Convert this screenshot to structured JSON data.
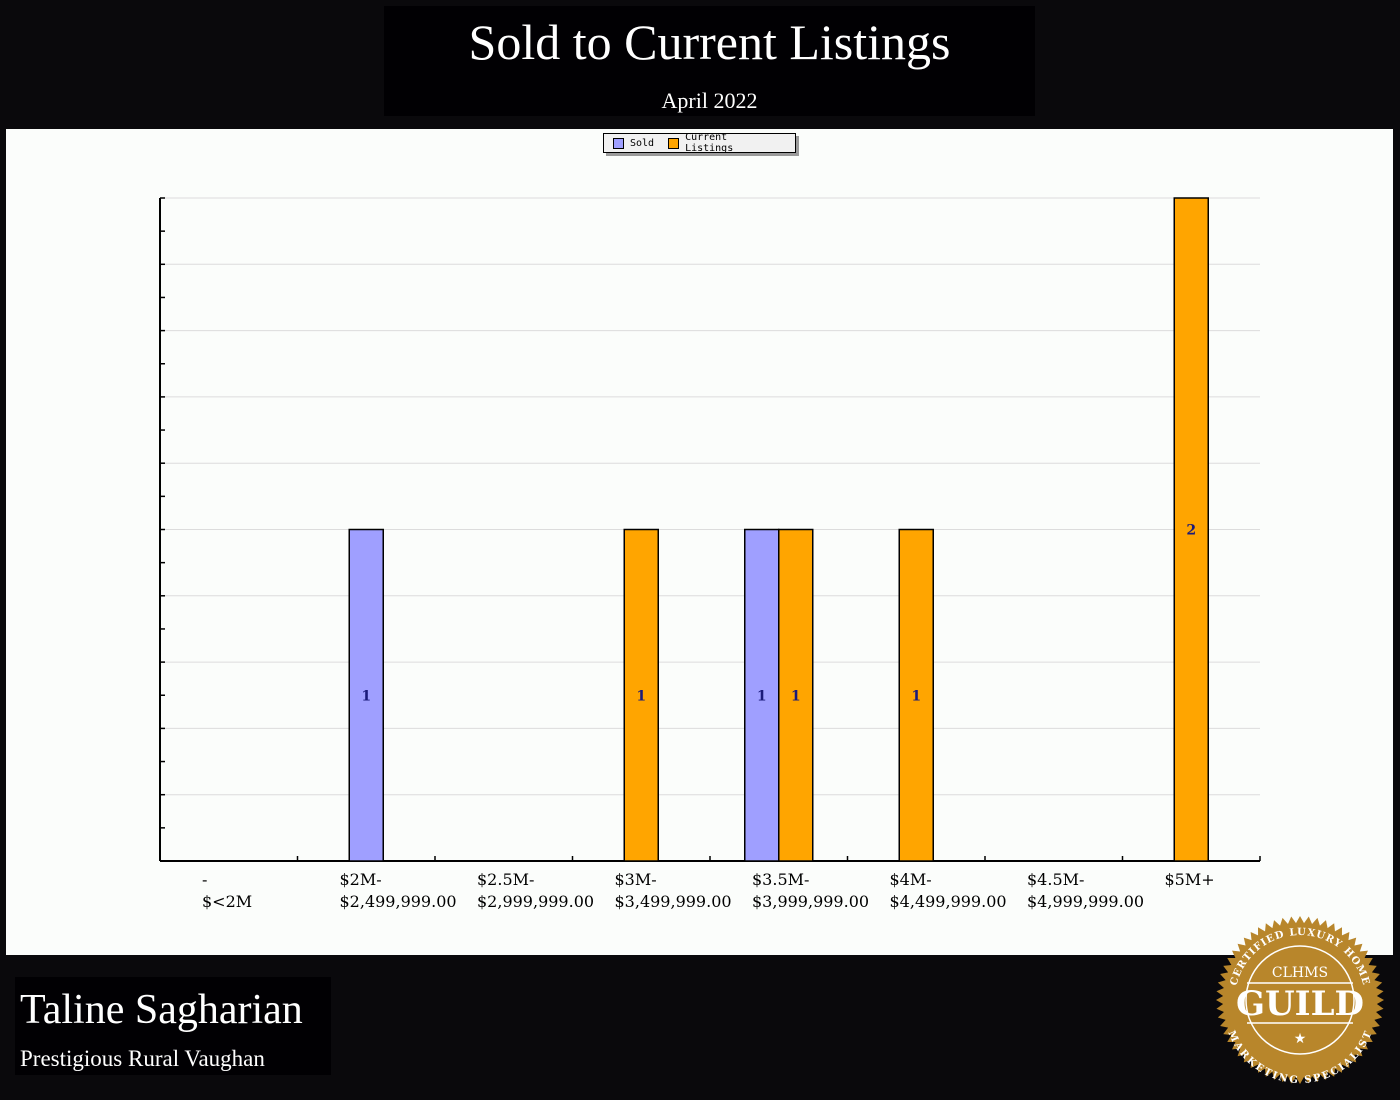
{
  "header": {
    "title": "Sold to Current Listings",
    "subtitle": "April 2022"
  },
  "legend": {
    "items": [
      {
        "label": "Sold",
        "color": "#9f9fff"
      },
      {
        "label": "Current Listings",
        "color": "#ffa500"
      }
    ]
  },
  "footer": {
    "agent_name": "Taline Sagharian",
    "area": "Prestigious Rural Vaughan"
  },
  "badge": {
    "top_text": "CERTIFIED LUXURY HOME",
    "acronym": "CLHMS",
    "main": "GUILD",
    "bottom_text": "MARKETING SPECIALIST",
    "star": "★",
    "color": "#b8862b"
  },
  "chart_data": {
    "type": "bar",
    "title": "Sold to Current Listings",
    "subtitle": "April 2022",
    "xlabel": "",
    "ylabel": "",
    "categories": [
      [
        "-",
        "$<2M"
      ],
      [
        "$2M-",
        "$2,499,999.00"
      ],
      [
        "$2.5M-",
        "$2,999,999.00"
      ],
      [
        "$3M-",
        "$3,499,999.00"
      ],
      [
        "$3.5M-",
        "$3,999,999.00"
      ],
      [
        "$4M-",
        "$4,499,999.00"
      ],
      [
        "$4.5M-",
        "$4,999,999.00"
      ],
      [
        "$5M+",
        ""
      ]
    ],
    "series": [
      {
        "name": "Sold",
        "color": "#9f9fff",
        "values": [
          0,
          1,
          0,
          0,
          1,
          0,
          0,
          0
        ]
      },
      {
        "name": "Current Listings",
        "color": "#ffa500",
        "values": [
          0,
          0,
          0,
          1,
          1,
          1,
          0,
          2
        ]
      }
    ],
    "ylim": [
      0,
      2
    ],
    "grid": true,
    "grid_step": 0.2,
    "y_tick_labels_shown": false,
    "legend_position": "top-center",
    "data_labels": true
  }
}
